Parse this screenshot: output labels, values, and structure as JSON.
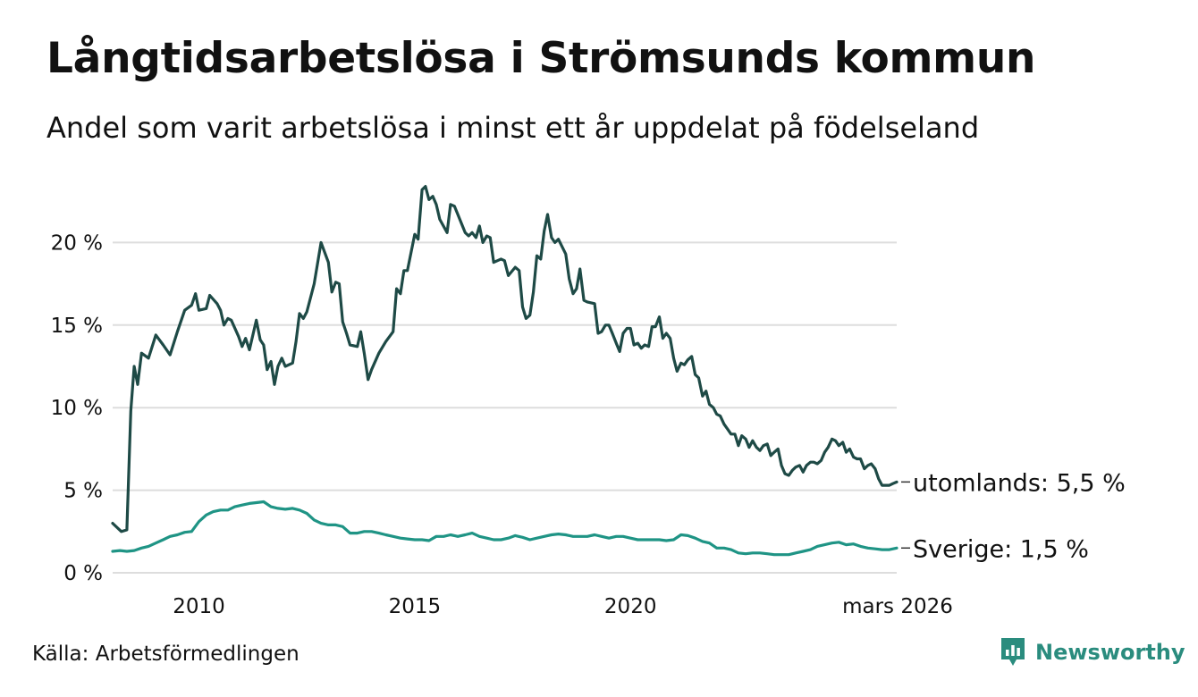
{
  "title": "Långtidsarbetslösa i Strömsunds kommun",
  "subtitle": "Andel som varit arbetslösa i minst ett år uppdelat på födelseland",
  "source": "Källa: Arbetsförmedlingen",
  "brand": "Newsworthy",
  "colors": {
    "utomlands": "#1e4a46",
    "sverige": "#1f9485",
    "grid": "#dddddd",
    "brand": "#2a8c7e"
  },
  "chart_data": {
    "type": "line",
    "title": "Långtidsarbetslösa i Strömsunds kommun",
    "xlabel": "",
    "ylabel": "",
    "xlim": [
      2008.0,
      2026.17
    ],
    "ylim": [
      0,
      25
    ],
    "y_ticks": [
      0,
      5,
      10,
      15,
      20
    ],
    "y_tick_labels": [
      "0 %",
      "5 %",
      "10 %",
      "15 %",
      "20 %"
    ],
    "x_ticks": [
      2010,
      2015,
      2020,
      2026.17
    ],
    "x_tick_labels": [
      "2010",
      "2015",
      "2020",
      "mars 2026"
    ],
    "series": [
      {
        "name": "utomlands",
        "end_label": "utomlands: 5,5 %",
        "points": [
          [
            2008.0,
            3.0
          ],
          [
            2008.2,
            2.5
          ],
          [
            2008.33,
            2.6
          ],
          [
            2008.42,
            9.8
          ],
          [
            2008.5,
            12.5
          ],
          [
            2008.58,
            11.4
          ],
          [
            2008.67,
            13.3
          ],
          [
            2008.83,
            13.0
          ],
          [
            2009.0,
            14.4
          ],
          [
            2009.17,
            13.8
          ],
          [
            2009.33,
            13.2
          ],
          [
            2009.5,
            14.6
          ],
          [
            2009.67,
            15.9
          ],
          [
            2009.83,
            16.2
          ],
          [
            2009.92,
            16.9
          ],
          [
            2010.0,
            15.9
          ],
          [
            2010.17,
            16.0
          ],
          [
            2010.25,
            16.8
          ],
          [
            2010.42,
            16.3
          ],
          [
            2010.5,
            15.9
          ],
          [
            2010.58,
            15.0
          ],
          [
            2010.67,
            15.4
          ],
          [
            2010.75,
            15.3
          ],
          [
            2010.92,
            14.3
          ],
          [
            2011.0,
            13.7
          ],
          [
            2011.08,
            14.2
          ],
          [
            2011.17,
            13.5
          ],
          [
            2011.33,
            15.3
          ],
          [
            2011.42,
            14.1
          ],
          [
            2011.5,
            13.8
          ],
          [
            2011.58,
            12.3
          ],
          [
            2011.67,
            12.8
          ],
          [
            2011.75,
            11.4
          ],
          [
            2011.83,
            12.5
          ],
          [
            2011.92,
            13.0
          ],
          [
            2012.0,
            12.5
          ],
          [
            2012.17,
            12.7
          ],
          [
            2012.25,
            14.0
          ],
          [
            2012.33,
            15.7
          ],
          [
            2012.42,
            15.4
          ],
          [
            2012.5,
            15.8
          ],
          [
            2012.67,
            17.5
          ],
          [
            2012.83,
            20.0
          ],
          [
            2013.0,
            18.8
          ],
          [
            2013.08,
            17.0
          ],
          [
            2013.17,
            17.6
          ],
          [
            2013.25,
            17.5
          ],
          [
            2013.33,
            15.2
          ],
          [
            2013.42,
            14.5
          ],
          [
            2013.5,
            13.8
          ],
          [
            2013.67,
            13.7
          ],
          [
            2013.75,
            14.6
          ],
          [
            2013.83,
            13.3
          ],
          [
            2013.92,
            11.7
          ],
          [
            2014.0,
            12.3
          ],
          [
            2014.17,
            13.3
          ],
          [
            2014.33,
            14.0
          ],
          [
            2014.5,
            14.6
          ],
          [
            2014.58,
            17.2
          ],
          [
            2014.67,
            16.9
          ],
          [
            2014.75,
            18.3
          ],
          [
            2014.83,
            18.3
          ],
          [
            2015.0,
            20.5
          ],
          [
            2015.08,
            20.2
          ],
          [
            2015.17,
            23.2
          ],
          [
            2015.25,
            23.4
          ],
          [
            2015.33,
            22.6
          ],
          [
            2015.42,
            22.8
          ],
          [
            2015.5,
            22.3
          ],
          [
            2015.58,
            21.4
          ],
          [
            2015.75,
            20.6
          ],
          [
            2015.83,
            22.3
          ],
          [
            2015.92,
            22.2
          ],
          [
            2016.0,
            21.7
          ],
          [
            2016.17,
            20.6
          ],
          [
            2016.25,
            20.4
          ],
          [
            2016.33,
            20.6
          ],
          [
            2016.42,
            20.3
          ],
          [
            2016.5,
            21.0
          ],
          [
            2016.58,
            20.0
          ],
          [
            2016.67,
            20.4
          ],
          [
            2016.75,
            20.3
          ],
          [
            2016.83,
            18.8
          ],
          [
            2017.0,
            19.0
          ],
          [
            2017.08,
            18.9
          ],
          [
            2017.17,
            18.0
          ],
          [
            2017.33,
            18.5
          ],
          [
            2017.42,
            18.3
          ],
          [
            2017.5,
            16.1
          ],
          [
            2017.58,
            15.4
          ],
          [
            2017.67,
            15.6
          ],
          [
            2017.75,
            17.0
          ],
          [
            2017.83,
            19.2
          ],
          [
            2017.92,
            19.0
          ],
          [
            2018.0,
            20.7
          ],
          [
            2018.08,
            21.7
          ],
          [
            2018.17,
            20.3
          ],
          [
            2018.25,
            20.0
          ],
          [
            2018.33,
            20.2
          ],
          [
            2018.5,
            19.3
          ],
          [
            2018.58,
            17.8
          ],
          [
            2018.67,
            16.9
          ],
          [
            2018.75,
            17.2
          ],
          [
            2018.83,
            18.4
          ],
          [
            2018.92,
            16.5
          ],
          [
            2019.0,
            16.4
          ],
          [
            2019.17,
            16.3
          ],
          [
            2019.25,
            14.5
          ],
          [
            2019.33,
            14.6
          ],
          [
            2019.42,
            15.0
          ],
          [
            2019.5,
            15.0
          ],
          [
            2019.58,
            14.5
          ],
          [
            2019.67,
            13.9
          ],
          [
            2019.75,
            13.4
          ],
          [
            2019.83,
            14.5
          ],
          [
            2019.92,
            14.8
          ],
          [
            2020.0,
            14.8
          ],
          [
            2020.08,
            13.8
          ],
          [
            2020.17,
            13.9
          ],
          [
            2020.25,
            13.6
          ],
          [
            2020.33,
            13.8
          ],
          [
            2020.42,
            13.7
          ],
          [
            2020.5,
            14.9
          ],
          [
            2020.58,
            14.9
          ],
          [
            2020.67,
            15.5
          ],
          [
            2020.75,
            14.2
          ],
          [
            2020.83,
            14.5
          ],
          [
            2020.92,
            14.2
          ],
          [
            2021.0,
            13.0
          ],
          [
            2021.08,
            12.2
          ],
          [
            2021.17,
            12.7
          ],
          [
            2021.25,
            12.6
          ],
          [
            2021.33,
            12.9
          ],
          [
            2021.42,
            13.1
          ],
          [
            2021.5,
            12.0
          ],
          [
            2021.58,
            11.8
          ],
          [
            2021.67,
            10.7
          ],
          [
            2021.75,
            11.0
          ],
          [
            2021.83,
            10.2
          ],
          [
            2021.92,
            10.0
          ],
          [
            2022.0,
            9.6
          ],
          [
            2022.08,
            9.5
          ],
          [
            2022.17,
            9.0
          ],
          [
            2022.25,
            8.7
          ],
          [
            2022.33,
            8.4
          ],
          [
            2022.42,
            8.4
          ],
          [
            2022.5,
            7.7
          ],
          [
            2022.58,
            8.3
          ],
          [
            2022.67,
            8.1
          ],
          [
            2022.75,
            7.6
          ],
          [
            2022.83,
            8.0
          ],
          [
            2022.92,
            7.6
          ],
          [
            2023.0,
            7.4
          ],
          [
            2023.08,
            7.7
          ],
          [
            2023.17,
            7.8
          ],
          [
            2023.25,
            7.1
          ],
          [
            2023.33,
            7.3
          ],
          [
            2023.42,
            7.5
          ],
          [
            2023.5,
            6.5
          ],
          [
            2023.58,
            6.0
          ],
          [
            2023.67,
            5.9
          ],
          [
            2023.75,
            6.2
          ],
          [
            2023.83,
            6.4
          ],
          [
            2023.92,
            6.5
          ],
          [
            2024.0,
            6.1
          ],
          [
            2024.08,
            6.5
          ],
          [
            2024.17,
            6.7
          ],
          [
            2024.25,
            6.7
          ],
          [
            2024.33,
            6.6
          ],
          [
            2024.42,
            6.8
          ],
          [
            2024.5,
            7.3
          ],
          [
            2024.58,
            7.6
          ],
          [
            2024.67,
            8.1
          ],
          [
            2024.75,
            8.0
          ],
          [
            2024.83,
            7.7
          ],
          [
            2024.92,
            7.9
          ],
          [
            2025.0,
            7.3
          ],
          [
            2025.08,
            7.5
          ],
          [
            2025.17,
            7.0
          ],
          [
            2025.25,
            6.9
          ],
          [
            2025.33,
            6.9
          ],
          [
            2025.42,
            6.3
          ],
          [
            2025.5,
            6.5
          ],
          [
            2025.58,
            6.6
          ],
          [
            2025.67,
            6.3
          ],
          [
            2025.75,
            5.7
          ],
          [
            2025.83,
            5.3
          ],
          [
            2025.92,
            5.3
          ],
          [
            2026.0,
            5.3
          ],
          [
            2026.08,
            5.4
          ],
          [
            2026.17,
            5.5
          ]
        ]
      },
      {
        "name": "Sverige",
        "end_label": "Sverige: 1,5 %",
        "points": [
          [
            2008.0,
            1.3
          ],
          [
            2008.17,
            1.35
          ],
          [
            2008.33,
            1.3
          ],
          [
            2008.5,
            1.35
          ],
          [
            2008.67,
            1.5
          ],
          [
            2008.83,
            1.6
          ],
          [
            2009.0,
            1.8
          ],
          [
            2009.17,
            2.0
          ],
          [
            2009.33,
            2.2
          ],
          [
            2009.5,
            2.3
          ],
          [
            2009.67,
            2.45
          ],
          [
            2009.83,
            2.5
          ],
          [
            2010.0,
            3.1
          ],
          [
            2010.17,
            3.5
          ],
          [
            2010.33,
            3.7
          ],
          [
            2010.5,
            3.8
          ],
          [
            2010.67,
            3.8
          ],
          [
            2010.83,
            4.0
          ],
          [
            2011.0,
            4.1
          ],
          [
            2011.17,
            4.2
          ],
          [
            2011.33,
            4.25
          ],
          [
            2011.5,
            4.3
          ],
          [
            2011.67,
            4.0
          ],
          [
            2011.83,
            3.9
          ],
          [
            2012.0,
            3.85
          ],
          [
            2012.17,
            3.9
          ],
          [
            2012.33,
            3.8
          ],
          [
            2012.5,
            3.6
          ],
          [
            2012.67,
            3.2
          ],
          [
            2012.83,
            3.0
          ],
          [
            2013.0,
            2.9
          ],
          [
            2013.17,
            2.9
          ],
          [
            2013.33,
            2.8
          ],
          [
            2013.5,
            2.4
          ],
          [
            2013.67,
            2.4
          ],
          [
            2013.83,
            2.5
          ],
          [
            2014.0,
            2.5
          ],
          [
            2014.17,
            2.4
          ],
          [
            2014.33,
            2.3
          ],
          [
            2014.5,
            2.2
          ],
          [
            2014.67,
            2.1
          ],
          [
            2014.83,
            2.05
          ],
          [
            2015.0,
            2.0
          ],
          [
            2015.17,
            2.0
          ],
          [
            2015.33,
            1.95
          ],
          [
            2015.5,
            2.2
          ],
          [
            2015.67,
            2.2
          ],
          [
            2015.83,
            2.3
          ],
          [
            2016.0,
            2.2
          ],
          [
            2016.17,
            2.3
          ],
          [
            2016.33,
            2.4
          ],
          [
            2016.5,
            2.2
          ],
          [
            2016.67,
            2.1
          ],
          [
            2016.83,
            2.0
          ],
          [
            2017.0,
            2.0
          ],
          [
            2017.17,
            2.1
          ],
          [
            2017.33,
            2.25
          ],
          [
            2017.5,
            2.15
          ],
          [
            2017.67,
            2.0
          ],
          [
            2017.83,
            2.1
          ],
          [
            2018.0,
            2.2
          ],
          [
            2018.17,
            2.3
          ],
          [
            2018.33,
            2.35
          ],
          [
            2018.5,
            2.3
          ],
          [
            2018.67,
            2.2
          ],
          [
            2018.83,
            2.2
          ],
          [
            2019.0,
            2.2
          ],
          [
            2019.17,
            2.3
          ],
          [
            2019.33,
            2.2
          ],
          [
            2019.5,
            2.1
          ],
          [
            2019.67,
            2.2
          ],
          [
            2019.83,
            2.2
          ],
          [
            2020.0,
            2.1
          ],
          [
            2020.17,
            2.0
          ],
          [
            2020.33,
            2.0
          ],
          [
            2020.5,
            2.0
          ],
          [
            2020.67,
            2.0
          ],
          [
            2020.83,
            1.95
          ],
          [
            2021.0,
            2.0
          ],
          [
            2021.17,
            2.3
          ],
          [
            2021.33,
            2.25
          ],
          [
            2021.5,
            2.1
          ],
          [
            2021.67,
            1.9
          ],
          [
            2021.83,
            1.8
          ],
          [
            2022.0,
            1.5
          ],
          [
            2022.17,
            1.5
          ],
          [
            2022.33,
            1.4
          ],
          [
            2022.5,
            1.2
          ],
          [
            2022.67,
            1.15
          ],
          [
            2022.83,
            1.2
          ],
          [
            2023.0,
            1.2
          ],
          [
            2023.17,
            1.15
          ],
          [
            2023.33,
            1.1
          ],
          [
            2023.5,
            1.1
          ],
          [
            2023.67,
            1.1
          ],
          [
            2023.83,
            1.2
          ],
          [
            2024.0,
            1.3
          ],
          [
            2024.17,
            1.4
          ],
          [
            2024.33,
            1.6
          ],
          [
            2024.5,
            1.7
          ],
          [
            2024.67,
            1.8
          ],
          [
            2024.83,
            1.85
          ],
          [
            2025.0,
            1.7
          ],
          [
            2025.17,
            1.75
          ],
          [
            2025.33,
            1.6
          ],
          [
            2025.5,
            1.5
          ],
          [
            2025.67,
            1.45
          ],
          [
            2025.83,
            1.4
          ],
          [
            2026.0,
            1.4
          ],
          [
            2026.17,
            1.5
          ]
        ]
      }
    ]
  }
}
